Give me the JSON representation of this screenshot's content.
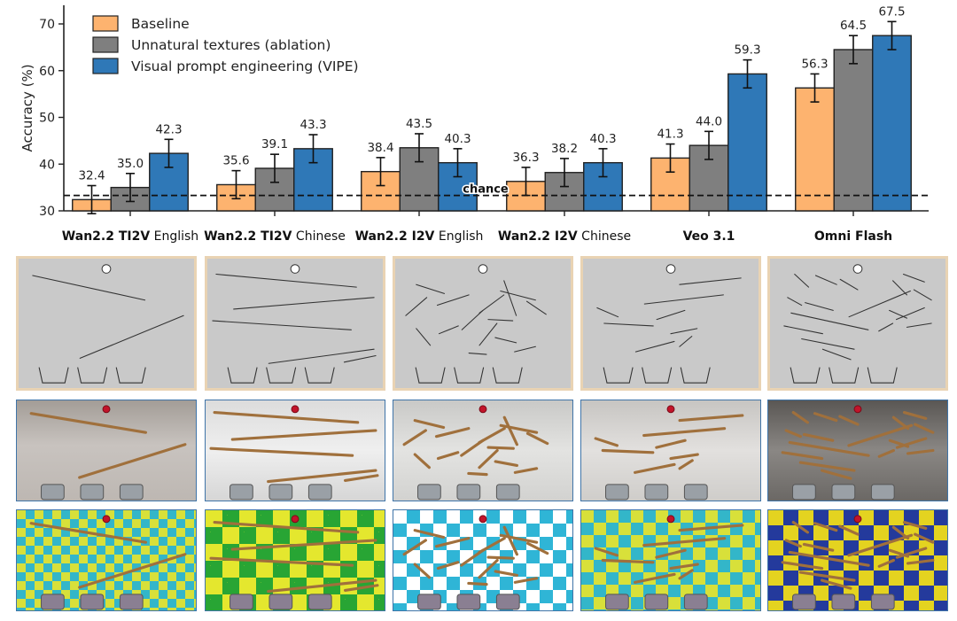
{
  "chart_data": {
    "type": "bar",
    "ylabel": "Accuracy (%)",
    "ylim": [
      30,
      74
    ],
    "yticks": [
      30,
      40,
      50,
      60,
      70
    ],
    "categories": [
      {
        "bold": "Wan2.2 TI2V",
        "rest": " English"
      },
      {
        "bold": "Wan2.2 TI2V",
        "rest": " Chinese"
      },
      {
        "bold": "Wan2.2 I2V",
        "rest": " English"
      },
      {
        "bold": "Wan2.2 I2V",
        "rest": " Chinese"
      },
      {
        "bold": "Veo 3.1",
        "rest": ""
      },
      {
        "bold": "Omni Flash",
        "rest": ""
      }
    ],
    "series": [
      {
        "name": "Baseline",
        "color": "#fdb36f",
        "values": [
          32.4,
          35.6,
          38.4,
          36.3,
          41.3,
          56.3
        ],
        "err": [
          3.0,
          3.0,
          3.0,
          3.0,
          3.0,
          3.0
        ],
        "labels": [
          "32.4",
          "35.6",
          "38.4",
          "36.3",
          "41.3",
          "56.3"
        ]
      },
      {
        "name": "Unnatural textures (ablation)",
        "color": "#7f7f7f",
        "values": [
          35.0,
          39.1,
          43.5,
          38.2,
          44.0,
          64.5
        ],
        "err": [
          3.0,
          3.0,
          3.0,
          3.0,
          3.0,
          3.0
        ],
        "labels": [
          "35.0",
          "39.1",
          "43.5",
          "38.2",
          "44.0",
          "64.5"
        ]
      },
      {
        "name": "Visual prompt engineering (VIPE)",
        "color": "#2f78b7",
        "values": [
          42.3,
          43.3,
          40.3,
          40.3,
          59.3,
          67.5
        ],
        "err": [
          3.0,
          3.0,
          3.0,
          3.0,
          3.0,
          3.0
        ],
        "labels": [
          "42.3",
          "43.3",
          "40.3",
          "40.3",
          "59.3",
          "67.5"
        ]
      }
    ],
    "chance": {
      "value": 33.3,
      "label": "chance"
    },
    "legend_position": "top-left",
    "grid": false
  },
  "image_grid": {
    "rows": [
      "sketch",
      "photo-natural",
      "photo-checkerboard"
    ],
    "columns": 6,
    "visible_columns": 5
  },
  "colors": {
    "sketch_bg": "#c9c9c9",
    "sketch_border": "#e9d3b3",
    "photo_border": "#3f74a8",
    "checker_yellow_green": [
      "#d8e03a",
      "#33b6c9"
    ],
    "checker_green": [
      "#e4e72e",
      "#28a534"
    ],
    "checker_cyan": [
      "#ffffff",
      "#2fb5d6"
    ],
    "checker_blue": [
      "#e4d320",
      "#243a9c"
    ]
  }
}
